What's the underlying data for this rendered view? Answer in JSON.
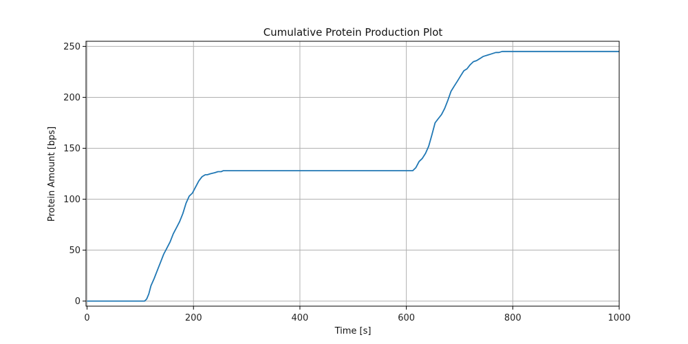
{
  "chart_data": {
    "type": "line",
    "title": "Cumulative Protein Production Plot",
    "xlabel": "Time [s]",
    "ylabel": "Protein Amount [bps]",
    "xlim": [
      -2,
      1000
    ],
    "ylim": [
      -5,
      255
    ],
    "x_ticks": [
      0,
      200,
      400,
      600,
      800,
      1000
    ],
    "y_ticks": [
      0,
      50,
      100,
      150,
      200,
      250
    ],
    "grid": true,
    "line_color": "#1f77b4",
    "grid_color": "#b0b0b0",
    "series": [
      {
        "x": [
          0,
          108,
          112,
          116,
          120,
          126,
          132,
          138,
          144,
          150,
          156,
          162,
          168,
          174,
          180,
          186,
          192,
          198,
          204,
          210,
          216,
          222,
          226,
          232,
          240,
          246,
          252,
          256,
          612,
          618,
          624,
          630,
          636,
          642,
          648,
          654,
          660,
          666,
          672,
          678,
          684,
          690,
          696,
          702,
          708,
          714,
          720,
          726,
          732,
          738,
          744,
          750,
          756,
          762,
          768,
          774,
          780,
          786,
          790,
          795,
          1000
        ],
        "y": [
          0,
          0,
          2,
          7,
          15,
          22,
          30,
          38,
          46,
          52,
          58,
          66,
          72,
          78,
          86,
          96,
          103,
          106,
          112,
          118,
          122,
          124,
          124,
          125,
          126,
          127,
          127,
          128,
          128,
          131,
          137,
          140,
          145,
          152,
          163,
          175,
          179,
          183,
          189,
          197,
          206,
          211,
          216,
          221,
          226,
          228,
          232,
          235,
          236,
          238,
          240,
          241,
          242,
          243,
          244,
          244,
          245,
          245,
          245,
          245,
          245
        ]
      }
    ]
  }
}
